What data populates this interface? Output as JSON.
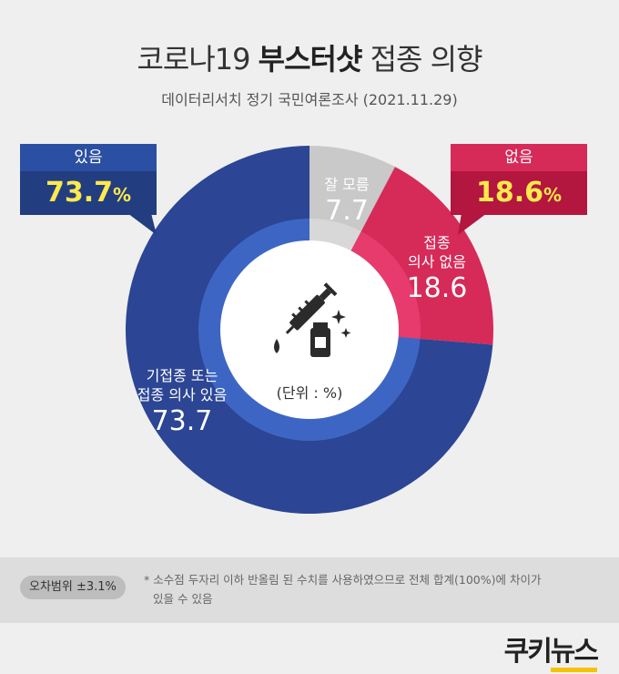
{
  "header": {
    "title_pre": "코로나19",
    "title_bold": "부스터샷",
    "title_post": "접종 의향",
    "subtitle": "데이터리서치 정기 국민여론조사 (2021.11.29)"
  },
  "chart_data": {
    "type": "pie",
    "donut": true,
    "categories": [
      "기접종 또는 접종 의사 있음",
      "잘 모름",
      "접종 의사 없음"
    ],
    "values": [
      73.7,
      7.7,
      18.6
    ],
    "colors": [
      "#2c4594",
      "#c9c9c9",
      "#d62a58"
    ],
    "inner_colors": [
      "#3d66c4",
      "#d8d8d8",
      "#e63b6c"
    ],
    "slice_labels": [
      {
        "line1": "기접종 또는",
        "line2": "접종 의사 있음",
        "num": "73.7"
      },
      {
        "line1": "잘 모름",
        "line2": "",
        "num": "7.7"
      },
      {
        "line1": "접종",
        "line2": "의사 없음",
        "num": "18.6"
      }
    ],
    "unit": "(단위 : %)"
  },
  "callouts": {
    "yes": {
      "label": "있음",
      "value": "73.7",
      "pct": "%"
    },
    "no": {
      "label": "없음",
      "value": "18.6",
      "pct": "%"
    }
  },
  "footer": {
    "margin_of_error": "오차범위 ±3.1%",
    "note_line1": "* 소수점 두자리 이하 반올림 된 수치를 사용하였으므로 전체 합계(100%)에 차이가",
    "note_line2": "있을 수 있음"
  },
  "logo": {
    "part1": "쿠키",
    "part2": "뉴스"
  },
  "icons": {
    "center": "syringe-vial-icon"
  }
}
